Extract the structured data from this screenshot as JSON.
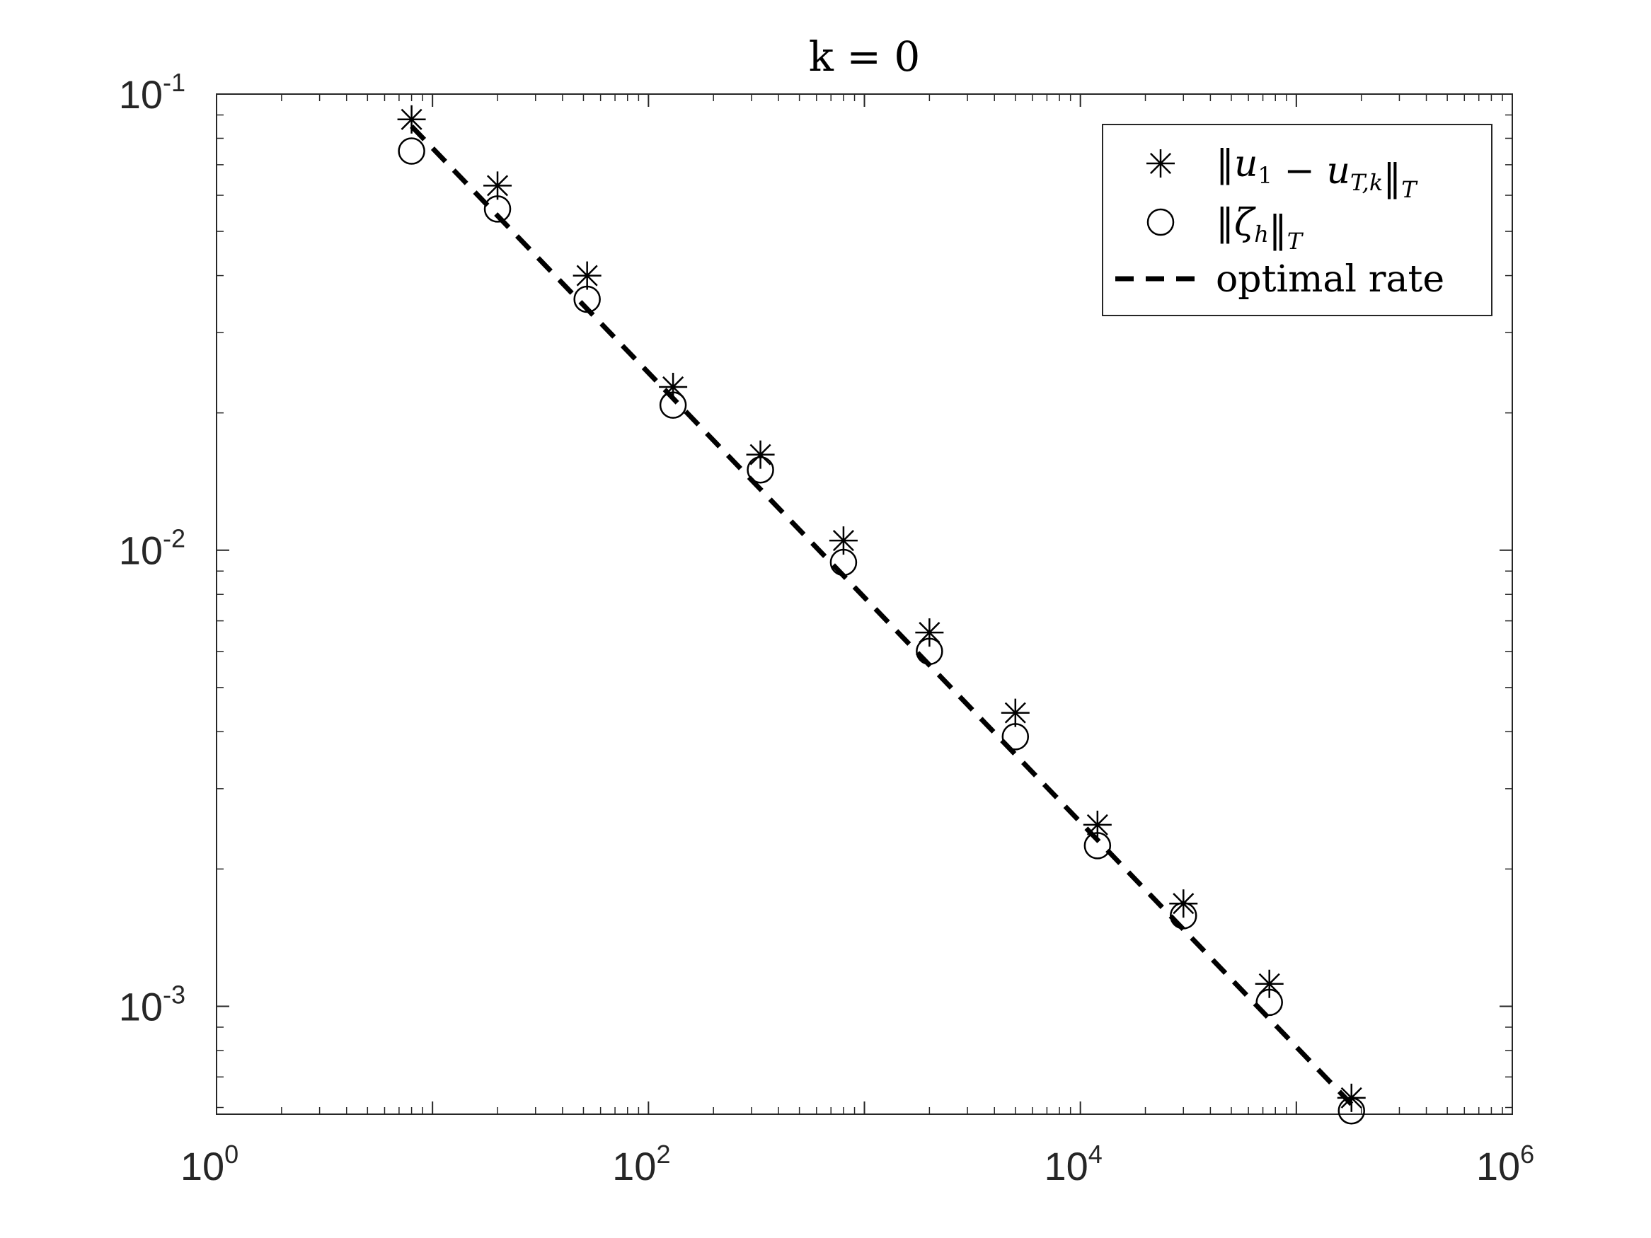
{
  "chart_data": {
    "type": "scatter",
    "title": "k = 0",
    "xlabel": "",
    "ylabel": "",
    "xscale": "log",
    "yscale": "log",
    "xlim": [
      1,
      1000000
    ],
    "ylim": [
      0.00058,
      0.1
    ],
    "grid": false,
    "legend_position": "top-right",
    "x_ticks": [
      {
        "base": "10",
        "exp": "0"
      },
      {
        "base": "10",
        "exp": "2"
      },
      {
        "base": "10",
        "exp": "4"
      },
      {
        "base": "10",
        "exp": "6"
      }
    ],
    "y_ticks": [
      {
        "base": "10",
        "exp": "-1",
        "value": 0.1
      },
      {
        "base": "10",
        "exp": "-2",
        "value": 0.01
      },
      {
        "base": "10",
        "exp": "-3",
        "value": 0.001
      }
    ],
    "series": [
      {
        "name": "‖u1 − uT,k‖T",
        "marker": "asterisk",
        "color": "#000000",
        "x": [
          8,
          20,
          52,
          130,
          330,
          800,
          2000,
          5000,
          12000,
          30000,
          75000,
          180000
        ],
        "y": [
          0.088,
          0.063,
          0.04,
          0.0228,
          0.0162,
          0.0105,
          0.0066,
          0.0044,
          0.0025,
          0.00168,
          0.00112,
          0.00063
        ]
      },
      {
        "name": "‖ζh‖T",
        "marker": "circle",
        "color": "#000000",
        "x": [
          8,
          20,
          52,
          130,
          330,
          800,
          2000,
          5000,
          12000,
          30000,
          75000,
          180000
        ],
        "y": [
          0.075,
          0.056,
          0.0355,
          0.0208,
          0.015,
          0.0094,
          0.006,
          0.0039,
          0.00225,
          0.00158,
          0.00102,
          0.00059
        ]
      },
      {
        "name": "optimal rate",
        "marker": "dashed-line",
        "color": "#000000",
        "x": [
          8,
          180000
        ],
        "y": [
          0.085,
          0.00061
        ]
      }
    ],
    "legend": [
      {
        "marker": "asterisk",
        "text_parts": [
          {
            "t": "‖",
            "style": "normal"
          },
          {
            "t": "u",
            "style": "italic"
          },
          {
            "t": "1",
            "style": "sub"
          },
          {
            "t": " − ",
            "style": "normal"
          },
          {
            "t": "u",
            "style": "italic"
          },
          {
            "t": "T,k",
            "style": "sub-italic"
          },
          {
            "t": "‖",
            "style": "normal"
          },
          {
            "t": "T",
            "style": "sub-italic"
          }
        ]
      },
      {
        "marker": "circle",
        "text_parts": [
          {
            "t": "‖",
            "style": "normal"
          },
          {
            "t": "ζ",
            "style": "italic"
          },
          {
            "t": "h",
            "style": "sub-italic"
          },
          {
            "t": "‖",
            "style": "normal"
          },
          {
            "t": "T",
            "style": "sub-italic"
          }
        ]
      },
      {
        "marker": "dashed-line",
        "text_parts": [
          {
            "t": "optimal rate",
            "style": "normal"
          }
        ]
      }
    ]
  }
}
